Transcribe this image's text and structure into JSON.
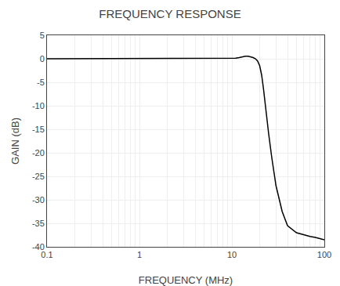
{
  "chart_data": {
    "type": "line",
    "title": "FREQUENCY RESPONSE",
    "xlabel": "FREQUENCY (MHz)",
    "ylabel": "GAIN (dB)",
    "x": [
      0.1,
      0.2,
      0.5,
      1.0,
      2.0,
      5.0,
      8.0,
      9.0,
      10.0,
      11.0,
      12.0,
      13.0,
      14.0,
      15.0,
      16.0,
      17.0,
      18.0,
      19.0,
      20.0,
      21.0,
      22.0,
      23.0,
      25.0,
      27.0,
      30.0,
      35.0,
      40.0,
      50.0,
      60.0,
      70.0,
      80.0,
      90.0,
      100.0
    ],
    "values": [
      0.0,
      0.0,
      0.0,
      0.0,
      0.0,
      0.0,
      0.0,
      0.02,
      0.05,
      0.12,
      0.25,
      0.45,
      0.55,
      0.55,
      0.45,
      0.25,
      0.0,
      -0.5,
      -1.5,
      -3.5,
      -6.5,
      -10.0,
      -16.0,
      -21.0,
      -27.0,
      -32.5,
      -35.5,
      -37.0,
      -37.5,
      -37.8,
      -38.0,
      -38.2,
      -38.5
    ],
    "color": "#000000",
    "xlim": [
      0.1,
      100
    ],
    "ylim": [
      -40,
      5
    ],
    "xticks": [
      0.1,
      1,
      10,
      100
    ],
    "yticks": [
      5,
      0,
      -5,
      -10,
      -15,
      -20,
      -25,
      -30,
      -35,
      -40
    ],
    "log": "x",
    "grid": true
  }
}
